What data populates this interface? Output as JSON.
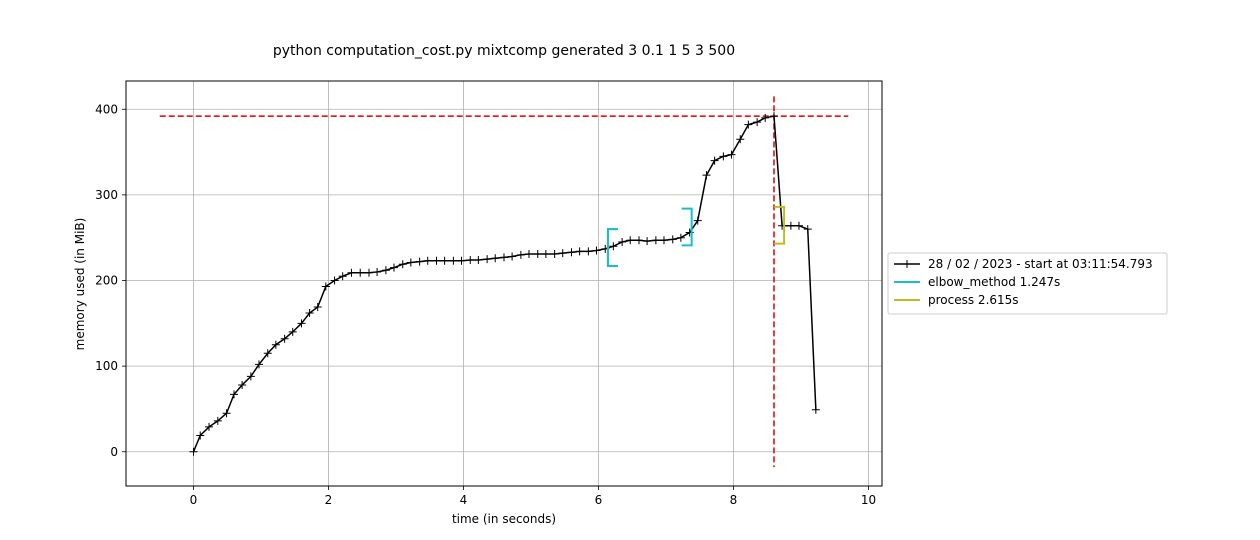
{
  "chart_data": {
    "type": "line",
    "title": "python computation_cost.py mixtcomp generated 3 0.1 1 5 3 500",
    "xlabel": "time (in seconds)",
    "ylabel": "memory used (in MiB)",
    "xlim": [
      -1,
      10.2
    ],
    "ylim": [
      -40,
      433
    ],
    "x_ticks": [
      0,
      2,
      4,
      6,
      8,
      10
    ],
    "y_ticks": [
      0,
      100,
      200,
      300,
      400
    ],
    "grid": true,
    "legend_position": "right-outside",
    "series": [
      {
        "name": "28 / 02 / 2023 - start at 03:11:54.793",
        "color": "#000000",
        "marker": "plus",
        "x": [
          0,
          0.1,
          0.23,
          0.36,
          0.49,
          0.6,
          0.72,
          0.85,
          0.97,
          1.1,
          1.22,
          1.35,
          1.47,
          1.6,
          1.72,
          1.84,
          1.96,
          2.09,
          2.21,
          2.34,
          2.47,
          2.6,
          2.72,
          2.85,
          2.97,
          3.1,
          3.22,
          3.35,
          3.47,
          3.6,
          3.72,
          3.85,
          3.97,
          4.1,
          4.22,
          4.35,
          4.47,
          4.6,
          4.72,
          4.85,
          4.97,
          5.1,
          5.22,
          5.35,
          5.47,
          5.6,
          5.72,
          5.85,
          5.97,
          6.1,
          6.22,
          6.35,
          6.47,
          6.6,
          6.72,
          6.85,
          6.97,
          7.1,
          7.22,
          7.35,
          7.47,
          7.6,
          7.72,
          7.85,
          7.97,
          8.1,
          8.22,
          8.35,
          8.47,
          8.6,
          8.72,
          8.85,
          8.97,
          9.1,
          9.22
        ],
        "y": [
          0,
          19,
          29,
          36,
          45,
          67,
          78,
          88,
          102,
          115,
          125,
          132,
          140,
          150,
          162,
          169,
          193,
          200,
          205,
          209,
          209,
          209,
          210,
          212,
          215,
          219,
          221,
          222,
          223,
          223,
          223,
          223,
          223,
          224,
          224,
          225,
          226,
          227,
          228,
          230,
          231,
          231,
          231,
          231,
          232,
          233,
          234,
          234,
          235,
          237,
          240,
          245,
          247,
          247,
          246,
          247,
          247,
          248,
          250,
          256,
          270,
          323,
          340,
          345,
          347,
          365,
          382,
          385,
          390,
          392,
          264,
          264,
          264,
          260,
          49
        ]
      }
    ],
    "reference_lines": {
      "max_memory_y": 392,
      "max_memory_x": 8.6,
      "color": "#dd0000"
    },
    "brackets": [
      {
        "name": "elbow_method 1.247s",
        "color": "#17becf",
        "start_x": 6.14,
        "end_x": 7.38,
        "y_low_start": 217,
        "y_high_start": 260,
        "y_low_end": 241,
        "y_high_end": 284
      },
      {
        "name": "process 2.615s",
        "color": "#bcbd22",
        "start_x": 6.14,
        "end_x": 8.75,
        "y_low_start": 217,
        "y_high_start": 260,
        "y_low_end": 243,
        "y_high_end": 286
      }
    ],
    "legend": [
      {
        "label": "28 / 02 / 2023 - start at 03:11:54.793",
        "color": "#000000",
        "marker": "plus"
      },
      {
        "label": "elbow_method 1.247s",
        "color": "#17becf"
      },
      {
        "label": "process 2.615s",
        "color": "#bcbd22"
      }
    ]
  }
}
